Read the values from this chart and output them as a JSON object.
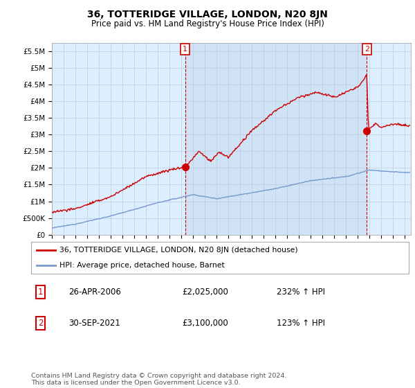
{
  "title": "36, TOTTERIDGE VILLAGE, LONDON, N20 8JN",
  "subtitle": "Price paid vs. HM Land Registry's House Price Index (HPI)",
  "bg_color": "#ffffff",
  "plot_bg_color": "#ddeeff",
  "grid_color": "#bbccdd",
  "red_color": "#cc0000",
  "blue_color": "#7799cc",
  "ylim": [
    0,
    5750000
  ],
  "yticks": [
    0,
    500000,
    1000000,
    1500000,
    2000000,
    2500000,
    3000000,
    3500000,
    4000000,
    4500000,
    5000000,
    5500000
  ],
  "ytick_labels": [
    "£0",
    "£500K",
    "£1M",
    "£1.5M",
    "£2M",
    "£2.5M",
    "£3M",
    "£3.5M",
    "£4M",
    "£4.5M",
    "£5M",
    "£5.5M"
  ],
  "sale1_x": 2006.32,
  "sale1_y": 2025000,
  "sale1_label": "1",
  "sale2_x": 2021.75,
  "sale2_y": 3100000,
  "sale2_label": "2",
  "xmin": 1995,
  "xmax": 2025.5,
  "legend_line1": "36, TOTTERIDGE VILLAGE, LONDON, N20 8JN (detached house)",
  "legend_line2": "HPI: Average price, detached house, Barnet",
  "ann1_num": "1",
  "ann1_date": "26-APR-2006",
  "ann1_price": "£2,025,000",
  "ann1_hpi": "232% ↑ HPI",
  "ann2_num": "2",
  "ann2_date": "30-SEP-2021",
  "ann2_price": "£3,100,000",
  "ann2_hpi": "123% ↑ HPI",
  "footer": "Contains HM Land Registry data © Crown copyright and database right 2024.\nThis data is licensed under the Open Government Licence v3.0."
}
